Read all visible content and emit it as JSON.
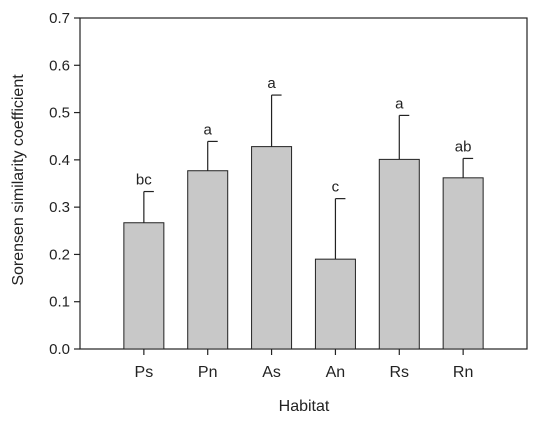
{
  "chart_data": {
    "type": "bar",
    "title": "",
    "xlabel": "Habitat",
    "ylabel": "Sorensen similarity coefficient",
    "ylim": [
      0,
      0.7
    ],
    "yticks": [
      "0.0",
      "0.1",
      "0.2",
      "0.3",
      "0.4",
      "0.5",
      "0.6",
      "0.7"
    ],
    "categories": [
      "Ps",
      "Pn",
      "As",
      "An",
      "Rs",
      "Rn"
    ],
    "values": [
      0.267,
      0.377,
      0.428,
      0.19,
      0.401,
      0.362
    ],
    "error_upper": [
      0.333,
      0.439,
      0.537,
      0.318,
      0.494,
      0.403
    ],
    "significance": [
      "bc",
      "a",
      "a",
      "c",
      "a",
      "ab"
    ],
    "bar_color": "#c8c8c8",
    "grid": false,
    "legend": "none"
  }
}
